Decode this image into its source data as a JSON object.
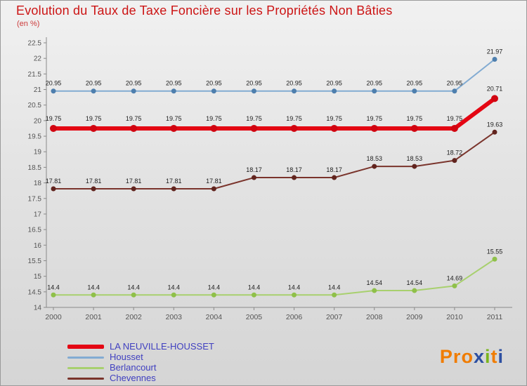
{
  "header": {
    "title": "Evolution du Taux de Taxe Foncière sur les Propriétés Non Bâties",
    "subtitle": "(en %)",
    "title_color": "#cc1414"
  },
  "chart_data": {
    "type": "line",
    "title": "Evolution du Taux de Taxe Foncière sur les Propriétés Non Bâties",
    "subtitle": "(en %)",
    "xlabel": "",
    "ylabel": "",
    "x": [
      2000,
      2001,
      2002,
      2003,
      2004,
      2005,
      2006,
      2007,
      2008,
      2009,
      2010,
      2011
    ],
    "ylim": [
      14,
      22.5
    ],
    "ytick_step": 0.5,
    "grid": false,
    "legend_position": "bottom-left",
    "data_labels": true,
    "series": [
      {
        "name": "LA NEUVILLE-HOUSSET",
        "color": "#e40613",
        "marker_color": "#d10410",
        "line_width": 6,
        "marker_radius": 5,
        "label_offset": 11,
        "values": [
          19.75,
          19.75,
          19.75,
          19.75,
          19.75,
          19.75,
          19.75,
          19.75,
          19.75,
          19.75,
          19.75,
          20.71
        ]
      },
      {
        "name": "Housset",
        "color": "#82abd2",
        "marker_color": "#4e7fae",
        "line_width": 2,
        "marker_radius": 3.5,
        "label_offset": 8,
        "values": [
          20.95,
          20.95,
          20.95,
          20.95,
          20.95,
          20.95,
          20.95,
          20.95,
          20.95,
          20.95,
          20.95,
          21.97
        ]
      },
      {
        "name": "Berlancourt",
        "color": "#a8d06e",
        "marker_color": "#8fc04a",
        "line_width": 2,
        "marker_radius": 3.5,
        "label_offset": 8,
        "values": [
          14.4,
          14.4,
          14.4,
          14.4,
          14.4,
          14.4,
          14.4,
          14.4,
          14.54,
          14.54,
          14.69,
          15.55
        ]
      },
      {
        "name": "Chevennes",
        "color": "#7a342c",
        "marker_color": "#61241e",
        "line_width": 2,
        "marker_radius": 3.5,
        "label_offset": 8,
        "values": [
          17.81,
          17.81,
          17.81,
          17.81,
          17.81,
          18.17,
          18.17,
          18.17,
          18.53,
          18.53,
          18.72,
          19.63
        ]
      }
    ],
    "axis_color": "#8a8a8a",
    "tick_label_color": "#555555",
    "data_label_color": "#1c1c1c"
  },
  "legend": {
    "text_color": "#4040c0"
  },
  "logo": {
    "text": "Proxiti",
    "letters": [
      {
        "ch": "P",
        "color": "#f07c00"
      },
      {
        "ch": "r",
        "color": "#f07c00"
      },
      {
        "ch": "o",
        "color": "#f07c00"
      },
      {
        "ch": "x",
        "color": "#2d4fa1"
      },
      {
        "ch": "i",
        "color": "#7ab51d"
      },
      {
        "ch": "t",
        "color": "#f07c00"
      },
      {
        "ch": "i",
        "color": "#2d4fa1"
      }
    ]
  }
}
